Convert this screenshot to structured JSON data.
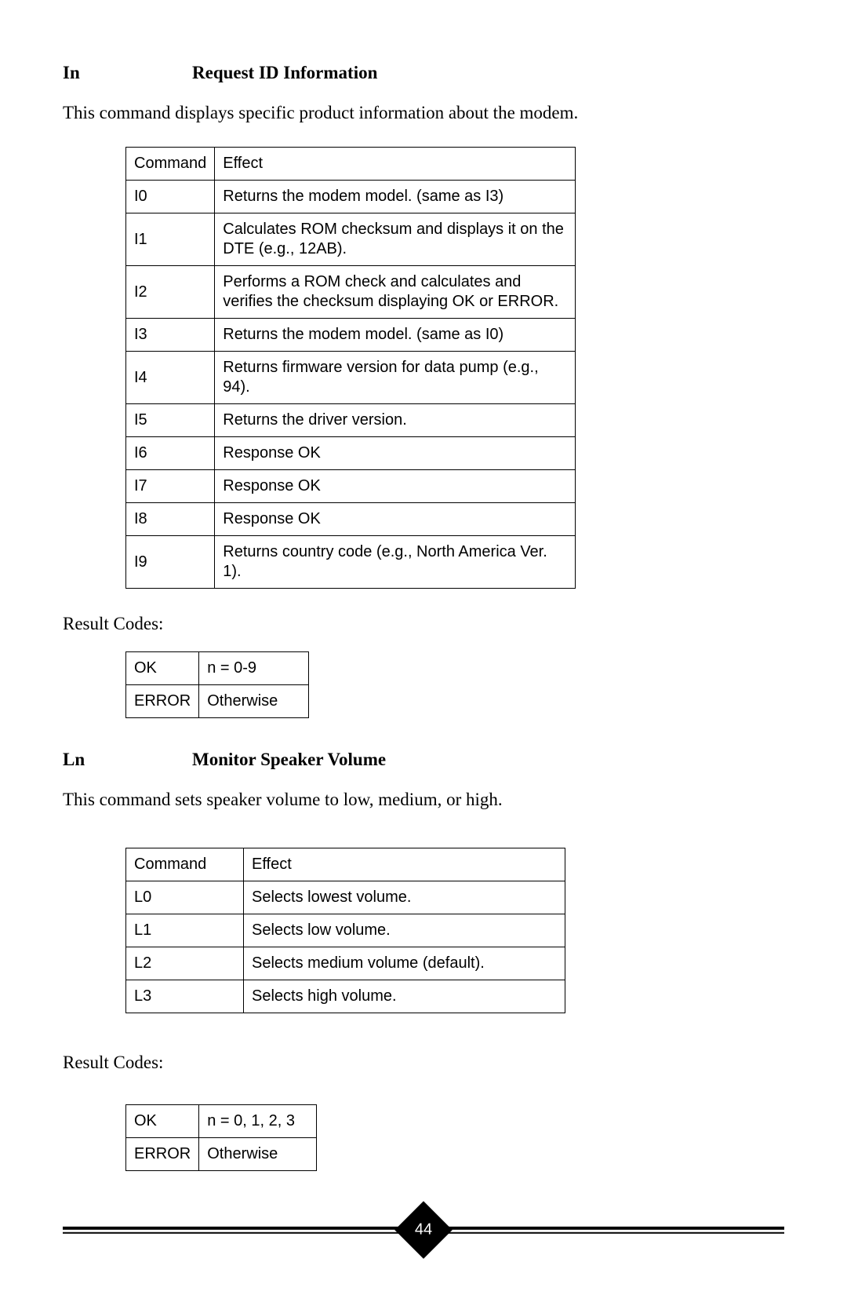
{
  "section1": {
    "cmd": "In",
    "title": "Request ID Information",
    "desc": "This command displays specific product information about the modem.",
    "table_header": {
      "col1": "Command",
      "col2": "Effect"
    },
    "rows": [
      {
        "c": "I0",
        "e": "Returns the modem model. (same as I3)"
      },
      {
        "c": "I1",
        "e": "Calculates ROM checksum and displays it on the DTE (e.g., 12AB)."
      },
      {
        "c": "I2",
        "e": "Performs a ROM check and calculates and verifies the checksum displaying OK or ERROR."
      },
      {
        "c": "I3",
        "e": "Returns the modem model. (same as I0)"
      },
      {
        "c": "I4",
        "e": "Returns firmware version for data pump (e.g., 94)."
      },
      {
        "c": "I5",
        "e": "Returns the driver version."
      },
      {
        "c": "I6",
        "e": "Response OK"
      },
      {
        "c": "I7",
        "e": "Response OK"
      },
      {
        "c": "I8",
        "e": "Response OK"
      },
      {
        "c": "I9",
        "e": "Returns country code (e.g., North America Ver. 1)."
      }
    ],
    "result_label": "Result Codes:",
    "result_rows": [
      {
        "c": "OK",
        "e": "n = 0-9"
      },
      {
        "c": "ERROR",
        "e": "Otherwise"
      }
    ]
  },
  "section2": {
    "cmd": "Ln",
    "title": "Monitor Speaker Volume",
    "desc": "This command sets speaker volume to low, medium, or high.",
    "table_header": {
      "col1": "Command",
      "col2": "Effect"
    },
    "rows": [
      {
        "c": "L0",
        "e": "Selects lowest volume."
      },
      {
        "c": "L1",
        "e": "Selects low volume."
      },
      {
        "c": "L2",
        "e": "Selects medium volume (default)."
      },
      {
        "c": "L3",
        "e": "Selects high volume."
      }
    ],
    "result_label": "Result Codes:",
    "result_rows": [
      {
        "c": "OK",
        "e": "n = 0, 1, 2, 3"
      },
      {
        "c": "ERROR",
        "e": "Otherwise"
      }
    ]
  },
  "page_number": "44"
}
